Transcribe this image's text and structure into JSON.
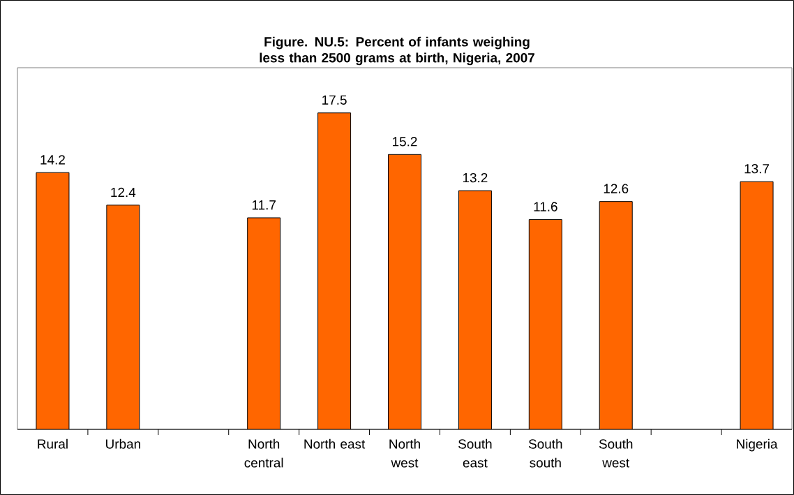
{
  "chart_data": {
    "type": "bar",
    "title": "Figure. NU.5: Percent of infants weighing less than 2500 grams at birth, Nigeria, 2007",
    "categories": [
      "Rural",
      "Urban",
      null,
      "North central",
      "North east",
      "North west",
      "South east",
      "South south",
      "South west",
      null,
      "Nigeria"
    ],
    "values": [
      14.2,
      12.4,
      null,
      11.7,
      17.5,
      15.2,
      13.2,
      11.6,
      12.6,
      null,
      13.7
    ],
    "color": "#ff6600",
    "ylim": [
      0,
      20
    ],
    "data_labels": true,
    "legend": false,
    "tick_labels": "x"
  }
}
